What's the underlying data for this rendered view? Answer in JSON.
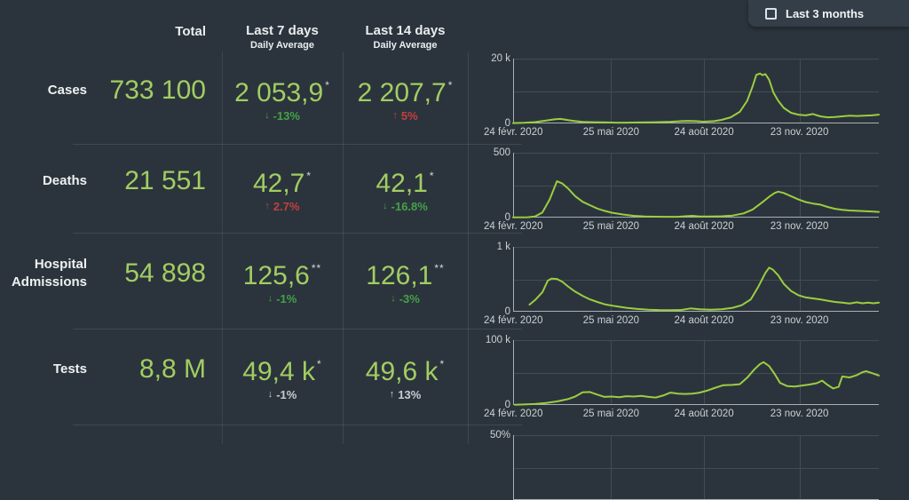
{
  "filter": {
    "label": "Last 3 months",
    "checked": false
  },
  "table": {
    "headers": {
      "total": "Total",
      "last7": "Last 7 days",
      "last14": "Last 14 days",
      "daily_avg": "Daily Average"
    },
    "rows": [
      {
        "label": "Cases",
        "total": "733 100",
        "avg7": {
          "value": "2 053,9",
          "note": "*",
          "arrow": "↓",
          "change": "-13%",
          "trend": "green"
        },
        "avg14": {
          "value": "2 207,7",
          "note": "*",
          "arrow": "↑",
          "change": "5%",
          "trend": "red"
        }
      },
      {
        "label": "Deaths",
        "total": "21 551",
        "avg7": {
          "value": "42,7",
          "note": "*",
          "arrow": "↑",
          "change": "2.7%",
          "trend": "red"
        },
        "avg14": {
          "value": "42,1",
          "note": "*",
          "arrow": "↓",
          "change": "-16.8%",
          "trend": "green"
        }
      },
      {
        "label": "Hospital Admissions",
        "total": "54 898",
        "avg7": {
          "value": "125,6",
          "note": "**",
          "arrow": "↓",
          "change": "-1%",
          "trend": "green"
        },
        "avg14": {
          "value": "126,1",
          "note": "**",
          "arrow": "↓",
          "change": "-3%",
          "trend": "green"
        }
      },
      {
        "label": "Tests",
        "total": "8,8 M",
        "avg7": {
          "value": "49,4 k",
          "note": "*",
          "arrow": "↓",
          "change": "-1%",
          "trend": "neutral"
        },
        "avg14": {
          "value": "49,6 k",
          "note": "*",
          "arrow": "↑",
          "change": "13%",
          "trend": "neutral"
        }
      }
    ]
  },
  "colors": {
    "background": "#2b343c",
    "card": "#333e48",
    "value_green": "#a2cd63",
    "line_green": "#9ccd40",
    "trend_green": "#44a248",
    "trend_red": "#c4403d",
    "trend_neutral": "#c9cdd0",
    "gridline": "#414c54",
    "axis": "#a9b0b4"
  },
  "chart_data": [
    {
      "type": "line",
      "title": "Cases",
      "ymax": 20000,
      "ymax_label": "20 k",
      "y0_label": "0",
      "grid_t": [
        0.268,
        0.522,
        0.783
      ],
      "x_ticks": [
        {
          "label": "24 févr. 2020",
          "t": 0
        },
        {
          "label": "25 mai 2020",
          "t": 0.268
        },
        {
          "label": "24 août 2020",
          "t": 0.522
        },
        {
          "label": "23 nov. 2020",
          "t": 0.783
        }
      ],
      "points": [
        [
          0,
          100
        ],
        [
          0.03,
          200
        ],
        [
          0.06,
          400
        ],
        [
          0.09,
          900
        ],
        [
          0.115,
          1300
        ],
        [
          0.13,
          1400
        ],
        [
          0.15,
          1050
        ],
        [
          0.17,
          700
        ],
        [
          0.19,
          480
        ],
        [
          0.22,
          380
        ],
        [
          0.25,
          320
        ],
        [
          0.28,
          260
        ],
        [
          0.31,
          250
        ],
        [
          0.34,
          290
        ],
        [
          0.37,
          330
        ],
        [
          0.4,
          400
        ],
        [
          0.43,
          520
        ],
        [
          0.46,
          700
        ],
        [
          0.48,
          800
        ],
        [
          0.5,
          720
        ],
        [
          0.52,
          560
        ],
        [
          0.55,
          700
        ],
        [
          0.57,
          1100
        ],
        [
          0.595,
          1900
        ],
        [
          0.62,
          3600
        ],
        [
          0.64,
          7000
        ],
        [
          0.655,
          11500
        ],
        [
          0.665,
          15000
        ],
        [
          0.675,
          15400
        ],
        [
          0.682,
          14900
        ],
        [
          0.69,
          15200
        ],
        [
          0.7,
          13500
        ],
        [
          0.712,
          9500
        ],
        [
          0.725,
          7000
        ],
        [
          0.74,
          4800
        ],
        [
          0.76,
          3300
        ],
        [
          0.78,
          2700
        ],
        [
          0.8,
          2500
        ],
        [
          0.82,
          2900
        ],
        [
          0.84,
          2200
        ],
        [
          0.86,
          1900
        ],
        [
          0.88,
          2000
        ],
        [
          0.9,
          2200
        ],
        [
          0.92,
          2400
        ],
        [
          0.94,
          2300
        ],
        [
          0.96,
          2400
        ],
        [
          0.98,
          2500
        ],
        [
          1,
          2700
        ]
      ]
    },
    {
      "type": "line",
      "title": "Deaths",
      "ymax": 500,
      "ymax_label": "500",
      "y0_label": "0",
      "grid_t": [
        0.268,
        0.522,
        0.783
      ],
      "x_ticks": [
        {
          "label": "24 févr. 2020",
          "t": 0
        },
        {
          "label": "25 mai 2020",
          "t": 0.268
        },
        {
          "label": "24 août 2020",
          "t": 0.522
        },
        {
          "label": "23 nov. 2020",
          "t": 0.783
        }
      ],
      "points": [
        [
          0,
          2
        ],
        [
          0.04,
          3
        ],
        [
          0.06,
          8
        ],
        [
          0.08,
          40
        ],
        [
          0.1,
          140
        ],
        [
          0.12,
          280
        ],
        [
          0.135,
          262
        ],
        [
          0.15,
          225
        ],
        [
          0.17,
          165
        ],
        [
          0.19,
          122
        ],
        [
          0.21,
          96
        ],
        [
          0.23,
          70
        ],
        [
          0.25,
          52
        ],
        [
          0.27,
          38
        ],
        [
          0.3,
          24
        ],
        [
          0.33,
          14
        ],
        [
          0.36,
          9
        ],
        [
          0.39,
          7
        ],
        [
          0.42,
          6
        ],
        [
          0.45,
          6
        ],
        [
          0.47,
          10
        ],
        [
          0.49,
          14
        ],
        [
          0.51,
          9
        ],
        [
          0.54,
          8
        ],
        [
          0.57,
          10
        ],
        [
          0.6,
          16
        ],
        [
          0.63,
          32
        ],
        [
          0.655,
          62
        ],
        [
          0.68,
          115
        ],
        [
          0.7,
          160
        ],
        [
          0.715,
          190
        ],
        [
          0.725,
          200
        ],
        [
          0.74,
          190
        ],
        [
          0.76,
          165
        ],
        [
          0.78,
          140
        ],
        [
          0.8,
          120
        ],
        [
          0.82,
          108
        ],
        [
          0.84,
          100
        ],
        [
          0.86,
          82
        ],
        [
          0.88,
          68
        ],
        [
          0.9,
          60
        ],
        [
          0.92,
          55
        ],
        [
          0.94,
          52
        ],
        [
          0.96,
          50
        ],
        [
          0.98,
          47
        ],
        [
          1,
          44
        ]
      ]
    },
    {
      "type": "line",
      "title": "Hospital Admissions",
      "ymax": 1000,
      "ymax_label": "1 k",
      "y0_label": "0",
      "grid_t": [
        0.268,
        0.522,
        0.783
      ],
      "x_ticks": [
        {
          "label": "24 févr. 2020",
          "t": 0
        },
        {
          "label": "25 mai 2020",
          "t": 0.268
        },
        {
          "label": "24 août 2020",
          "t": 0.522
        },
        {
          "label": "23 nov. 2020",
          "t": 0.783
        }
      ],
      "points": [
        [
          0.045,
          110
        ],
        [
          0.06,
          180
        ],
        [
          0.08,
          300
        ],
        [
          0.095,
          480
        ],
        [
          0.105,
          510
        ],
        [
          0.12,
          505
        ],
        [
          0.135,
          460
        ],
        [
          0.15,
          390
        ],
        [
          0.17,
          310
        ],
        [
          0.19,
          245
        ],
        [
          0.21,
          190
        ],
        [
          0.23,
          150
        ],
        [
          0.25,
          115
        ],
        [
          0.28,
          85
        ],
        [
          0.31,
          60
        ],
        [
          0.34,
          42
        ],
        [
          0.37,
          32
        ],
        [
          0.4,
          26
        ],
        [
          0.43,
          24
        ],
        [
          0.46,
          28
        ],
        [
          0.485,
          50
        ],
        [
          0.51,
          38
        ],
        [
          0.54,
          30
        ],
        [
          0.57,
          38
        ],
        [
          0.6,
          60
        ],
        [
          0.625,
          100
        ],
        [
          0.65,
          190
        ],
        [
          0.67,
          380
        ],
        [
          0.69,
          600
        ],
        [
          0.7,
          680
        ],
        [
          0.71,
          650
        ],
        [
          0.725,
          560
        ],
        [
          0.74,
          430
        ],
        [
          0.76,
          320
        ],
        [
          0.78,
          255
        ],
        [
          0.8,
          220
        ],
        [
          0.82,
          205
        ],
        [
          0.84,
          190
        ],
        [
          0.86,
          170
        ],
        [
          0.88,
          150
        ],
        [
          0.9,
          140
        ],
        [
          0.92,
          128
        ],
        [
          0.94,
          145
        ],
        [
          0.955,
          130
        ],
        [
          0.97,
          140
        ],
        [
          0.985,
          130
        ],
        [
          1,
          140
        ]
      ]
    },
    {
      "type": "line",
      "title": "Tests",
      "ymax": 100000,
      "ymax_label": "100 k",
      "y0_label": "0",
      "grid_t": [
        0.268,
        0.522,
        0.783
      ],
      "x_ticks": [
        {
          "label": "24 févr. 2020",
          "t": 0
        },
        {
          "label": "25 mai 2020",
          "t": 0.268
        },
        {
          "label": "24 août 2020",
          "t": 0.522
        },
        {
          "label": "23 nov. 2020",
          "t": 0.783
        }
      ],
      "points": [
        [
          0.005,
          300
        ],
        [
          0.03,
          800
        ],
        [
          0.06,
          1500
        ],
        [
          0.09,
          3000
        ],
        [
          0.12,
          5500
        ],
        [
          0.15,
          9000
        ],
        [
          0.17,
          13000
        ],
        [
          0.19,
          19500
        ],
        [
          0.21,
          20000
        ],
        [
          0.23,
          16000
        ],
        [
          0.25,
          12500
        ],
        [
          0.27,
          13000
        ],
        [
          0.29,
          12000
        ],
        [
          0.31,
          13500
        ],
        [
          0.33,
          13000
        ],
        [
          0.35,
          14000
        ],
        [
          0.37,
          12500
        ],
        [
          0.39,
          11500
        ],
        [
          0.41,
          14500
        ],
        [
          0.43,
          19000
        ],
        [
          0.45,
          17500
        ],
        [
          0.47,
          17000
        ],
        [
          0.49,
          17500
        ],
        [
          0.51,
          19000
        ],
        [
          0.53,
          22000
        ],
        [
          0.55,
          26000
        ],
        [
          0.575,
          30500
        ],
        [
          0.6,
          31000
        ],
        [
          0.62,
          32000
        ],
        [
          0.64,
          42000
        ],
        [
          0.66,
          55000
        ],
        [
          0.675,
          63000
        ],
        [
          0.685,
          66000
        ],
        [
          0.7,
          60000
        ],
        [
          0.715,
          48000
        ],
        [
          0.73,
          34000
        ],
        [
          0.75,
          29000
        ],
        [
          0.77,
          28500
        ],
        [
          0.79,
          30000
        ],
        [
          0.81,
          31500
        ],
        [
          0.83,
          33500
        ],
        [
          0.845,
          37500
        ],
        [
          0.86,
          31000
        ],
        [
          0.875,
          25500
        ],
        [
          0.89,
          28000
        ],
        [
          0.9,
          44000
        ],
        [
          0.92,
          42500
        ],
        [
          0.94,
          46000
        ],
        [
          0.955,
          50500
        ],
        [
          0.965,
          52000
        ],
        [
          0.98,
          49500
        ],
        [
          1,
          45500
        ]
      ]
    },
    {
      "type": "line",
      "title": "",
      "ymax": 50,
      "ymax_label": "50%",
      "y0_label": null,
      "grid_t": [
        0.268,
        0.522,
        0.783
      ],
      "x_ticks": [],
      "points": []
    }
  ]
}
